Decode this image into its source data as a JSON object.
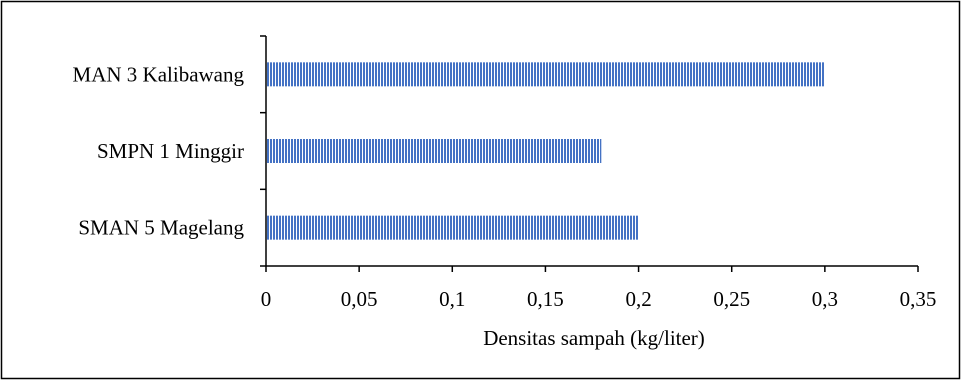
{
  "chart_data": {
    "type": "bar",
    "orientation": "horizontal",
    "categories": [
      "MAN 3 Kalibawang",
      "SMPN 1 Minggir",
      "SMAN 5 Magelang"
    ],
    "values": [
      0.3,
      0.18,
      0.2
    ],
    "xlabel": "Densitas sampah (kg/liter)",
    "ylabel": "",
    "xlim": [
      0,
      0.35
    ],
    "x_ticks": [
      0,
      0.05,
      0.1,
      0.15,
      0.2,
      0.25,
      0.3,
      0.35
    ],
    "x_tick_labels": [
      "0",
      "0,05",
      "0,1",
      "0,15",
      "0,2",
      "0,25",
      "0,3",
      "0,35"
    ],
    "grid": false,
    "legend": "none",
    "bar_color": "#4472c4",
    "bar_pattern": "vertical-stripes"
  }
}
